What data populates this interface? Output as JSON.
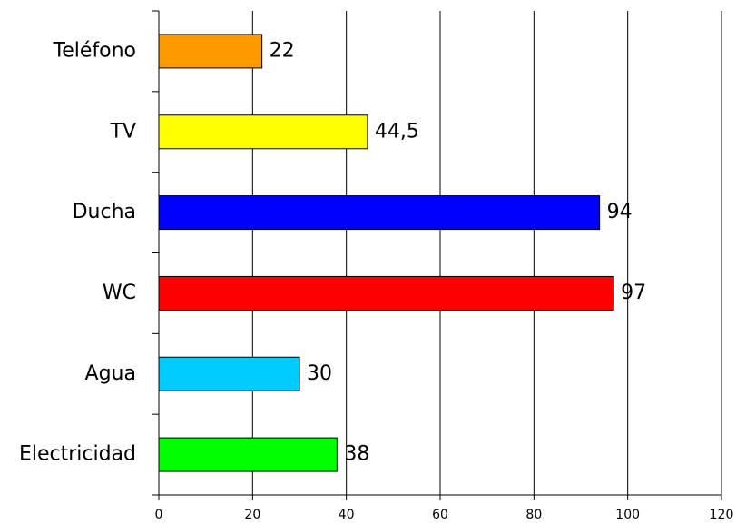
{
  "chart_data": {
    "type": "bar",
    "orientation": "horizontal",
    "categories": [
      "Teléfono",
      "TV",
      "Ducha",
      "WC",
      "Agua",
      "Electricidad"
    ],
    "values": [
      22,
      44.5,
      94,
      97,
      30,
      38
    ],
    "value_labels": [
      "22",
      "44,5",
      "94",
      "97",
      "30",
      "38"
    ],
    "colors": [
      "#ff9900",
      "#ffff00",
      "#0000ff",
      "#ff0000",
      "#00ccff",
      "#00ff00"
    ],
    "xlim": [
      0,
      120
    ],
    "xticks": [
      0,
      20,
      40,
      60,
      80,
      100,
      120
    ],
    "grid": true
  }
}
